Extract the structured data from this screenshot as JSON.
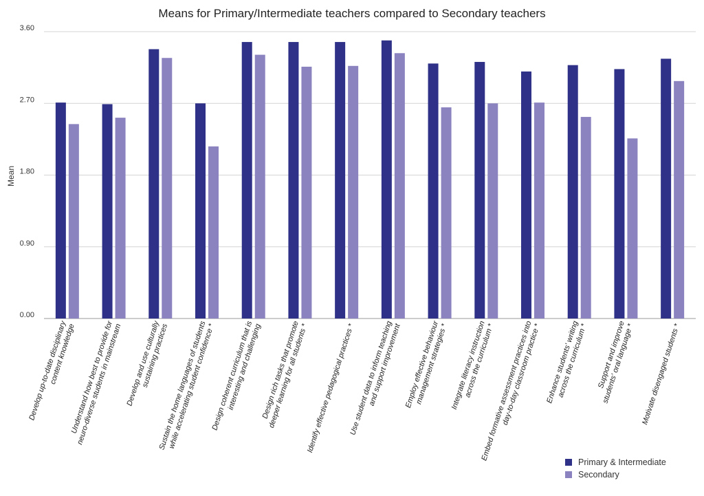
{
  "chart_data": {
    "type": "bar",
    "title": "Means for Primary/Intermediate teachers compared to Secondary teachers",
    "ylabel": "Mean",
    "xlabel": "",
    "ylim": [
      0,
      3.6
    ],
    "yticks": [
      "0.00",
      "0.90",
      "1.80",
      "2.70",
      "3.60"
    ],
    "grid": true,
    "legend_position": "bottom-right",
    "categories": [
      [
        "Develop up-to-date disciplinary",
        "content knowledge"
      ],
      [
        "Understand how best to provide for",
        "neuro-diverse students in mainstream"
      ],
      [
        "Develop and use culturally",
        "sustaining practices"
      ],
      [
        "Sustain the home languages of students",
        "while accelerating student confidence *"
      ],
      [
        "Design coherent curriculum that is",
        "interesting and challenging"
      ],
      [
        "Design rich tasks that promote",
        "deeper learning for all students *"
      ],
      [
        "Identify effective pedagogical practices *"
      ],
      [
        "Use student data to inform teaching",
        "and support improvement"
      ],
      [
        "Employ effective behaviour",
        "management strategies *"
      ],
      [
        "Integrate literacy instruction",
        "across the curriculum *"
      ],
      [
        "Embed formative assessment practices into",
        "day-to-day classroom practice *"
      ],
      [
        "Enhance students' writing",
        "across the curriculum *"
      ],
      [
        "Support and improve",
        "students' oral language *"
      ],
      [
        "Motivate disengaged students *"
      ]
    ],
    "series": [
      {
        "name": "Primary & Intermediate",
        "color": "#2e3187",
        "values": [
          2.71,
          2.69,
          3.38,
          2.7,
          3.47,
          3.47,
          3.47,
          3.49,
          3.2,
          3.22,
          3.1,
          3.18,
          3.13,
          3.26
        ]
      },
      {
        "name": "Secondary",
        "color": "#8b83c0",
        "values": [
          2.44,
          2.52,
          3.27,
          2.16,
          3.31,
          3.16,
          3.17,
          3.33,
          2.65,
          2.7,
          2.71,
          2.53,
          2.26,
          2.98
        ]
      }
    ]
  }
}
